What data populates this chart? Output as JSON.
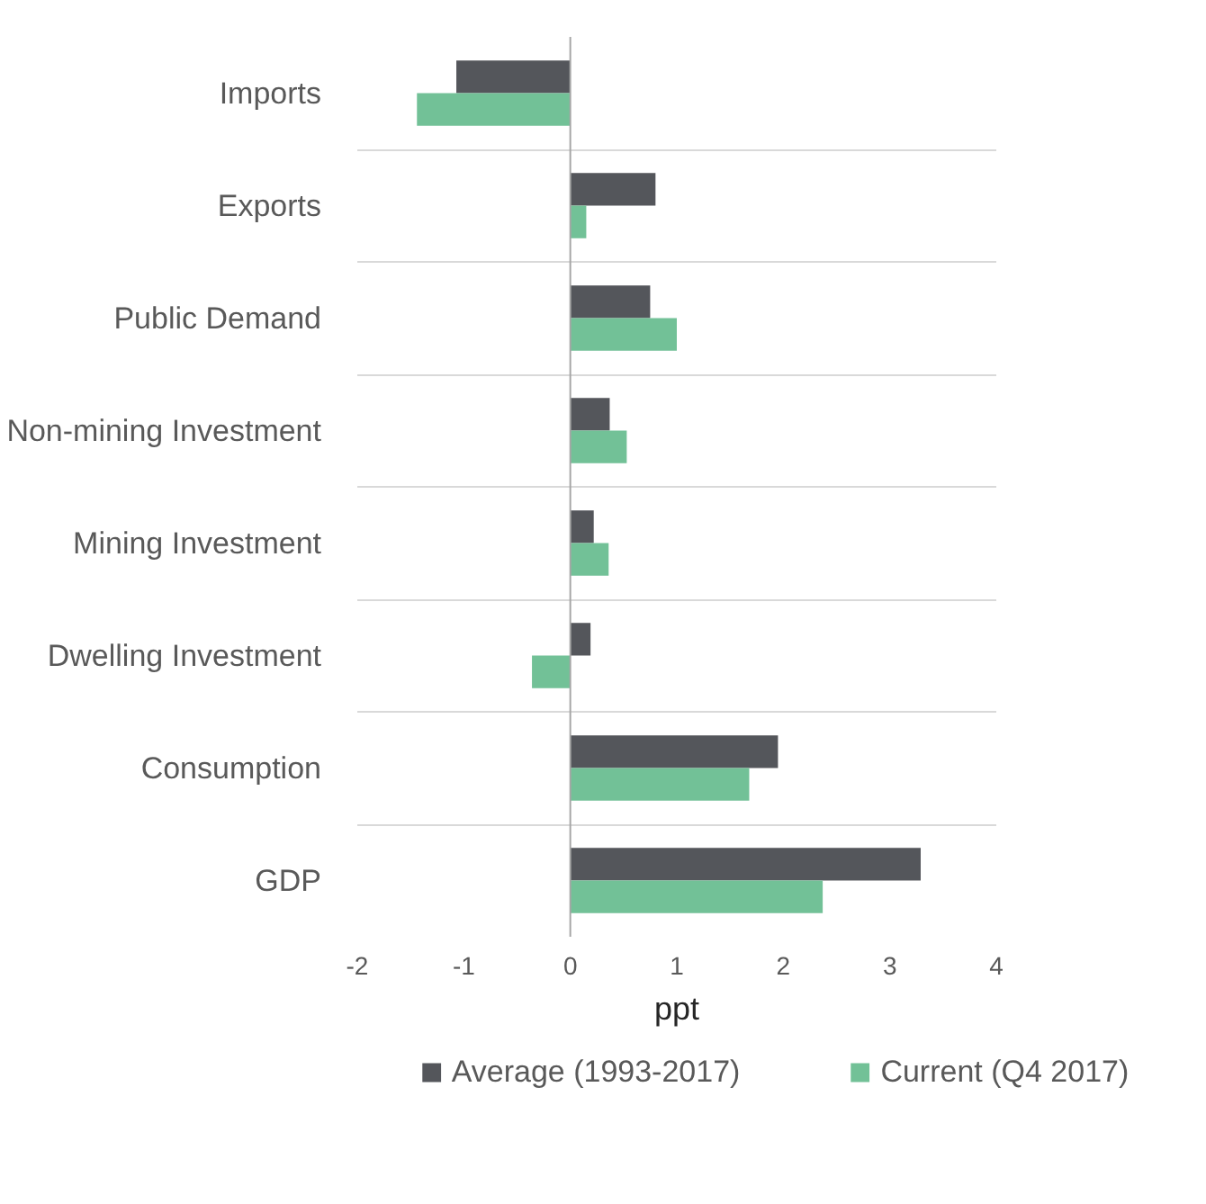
{
  "chart_data": {
    "type": "bar",
    "orientation": "horizontal",
    "xlabel": "ppt",
    "categories": [
      "Imports",
      "Exports",
      "Public Demand",
      "Non-mining Investment",
      "Mining Investment",
      "Dwelling Investment",
      "Consumption",
      "GDP"
    ],
    "series": [
      {
        "name": "Average (1993-2017)",
        "color": "#54565b",
        "values": [
          -1.07,
          0.8,
          0.75,
          0.37,
          0.22,
          0.19,
          1.95,
          3.29
        ]
      },
      {
        "name": "Current (Q4 2017)",
        "color": "#72c197",
        "values": [
          -1.44,
          0.15,
          1.0,
          0.53,
          0.36,
          -0.36,
          1.68,
          2.37
        ]
      }
    ],
    "xlim": [
      -2,
      4
    ],
    "xticks": [
      -2,
      -1,
      0,
      1,
      2,
      3,
      4
    ],
    "grid": "y",
    "legend": "bottom"
  }
}
